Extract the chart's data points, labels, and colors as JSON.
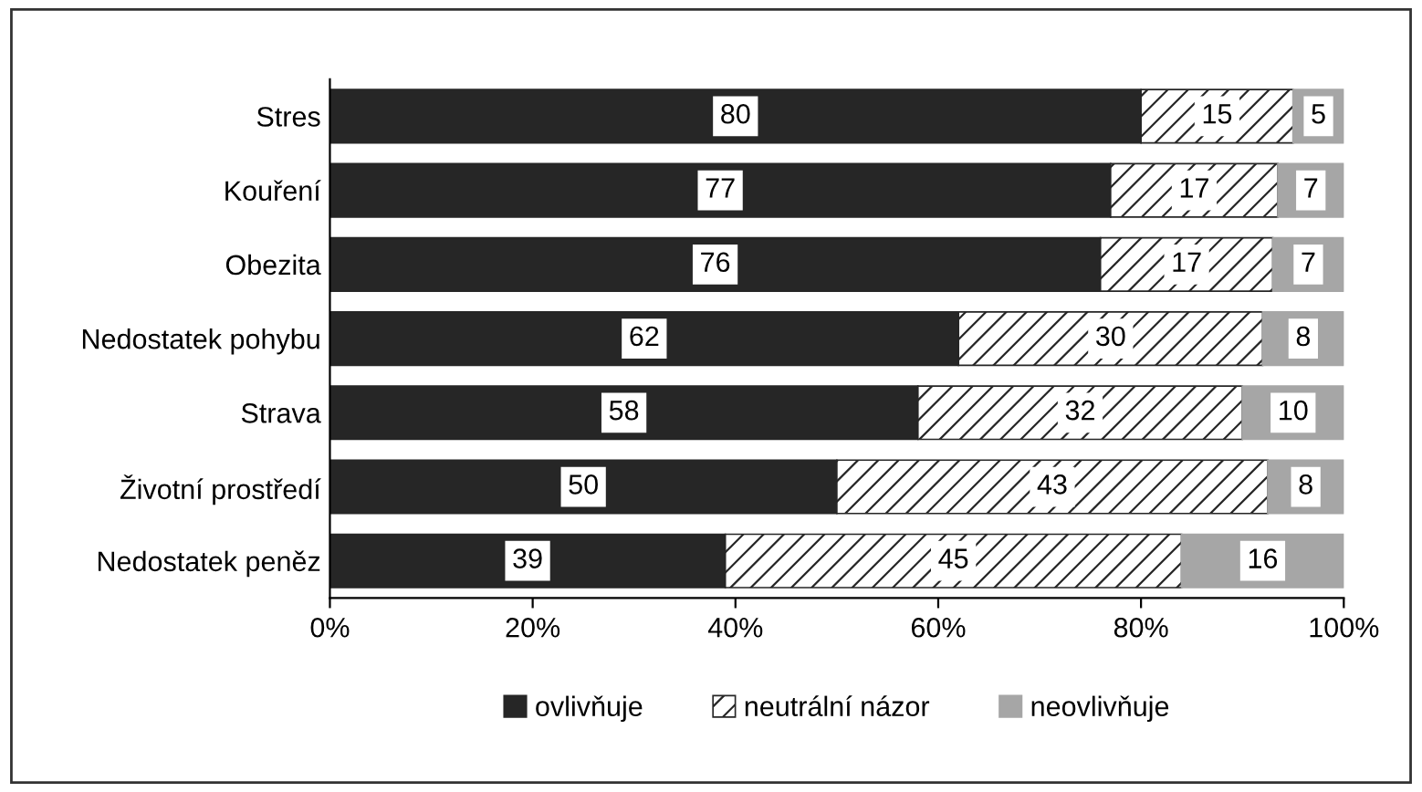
{
  "chart_data": {
    "type": "bar",
    "orientation": "horizontal",
    "stacked": true,
    "categories": [
      "Stres",
      "Kouření",
      "Obezita",
      "Nedostatek pohybu",
      "Strava",
      "Životní prostředí",
      "Nedostatek peněz"
    ],
    "series": [
      {
        "name": "ovlivňuje",
        "color": "#262626",
        "values": [
          80,
          77,
          76,
          62,
          58,
          50,
          39
        ],
        "value_labels": [
          "80",
          "77",
          "76",
          "62",
          "58",
          "50",
          "39"
        ]
      },
      {
        "name": "neutrální názor",
        "color": "#262626",
        "values": [
          15,
          16.5,
          17,
          30,
          32,
          42.5,
          45
        ],
        "value_labels": [
          "15",
          "17",
          "17",
          "30",
          "32",
          "43",
          "45"
        ]
      },
      {
        "name": "neovlivňuje",
        "color": "#a6a6a6",
        "values": [
          5,
          6.5,
          7,
          8,
          10,
          7.5,
          16
        ],
        "value_labels": [
          "5",
          "7",
          "7",
          "8",
          "10",
          "8",
          "16"
        ]
      }
    ],
    "xlim": [
      0,
      100
    ],
    "xticks": [
      {
        "value": 0,
        "label": "0%"
      },
      {
        "value": 20,
        "label": "20%"
      },
      {
        "value": 40,
        "label": "40%"
      },
      {
        "value": 60,
        "label": "60%"
      },
      {
        "value": 80,
        "label": "80%"
      },
      {
        "value": 100,
        "label": "100%"
      }
    ],
    "grid": false,
    "legend": "bottom"
  }
}
